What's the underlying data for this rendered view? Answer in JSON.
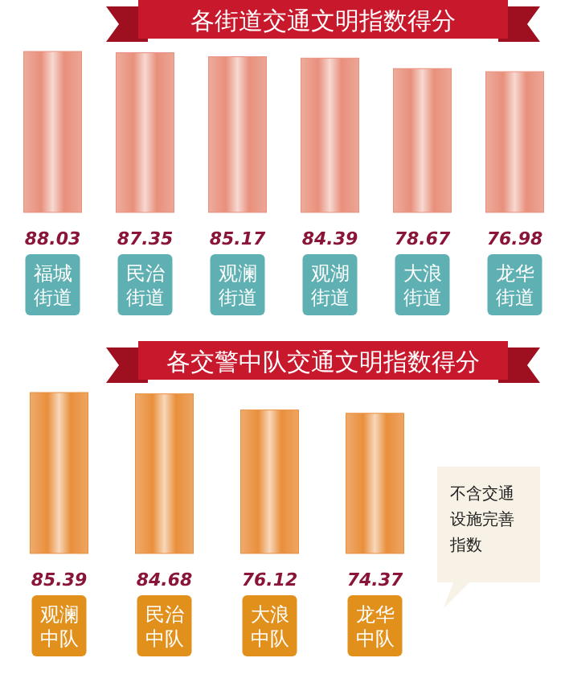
{
  "chart_data": [
    {
      "type": "bar",
      "title": "各街道交通文明指数得分",
      "categories": [
        "福城街道",
        "民治街道",
        "观澜街道",
        "观湖街道",
        "大浪街道",
        "龙华街道"
      ],
      "values": [
        88.03,
        87.35,
        85.17,
        84.39,
        78.67,
        76.98
      ],
      "color": "#e8907c",
      "data_labels": true
    },
    {
      "type": "bar",
      "title": "各交警中队交通文明指数得分",
      "categories": [
        "观澜中队",
        "民治中队",
        "大浪中队",
        "龙华中队"
      ],
      "values": [
        85.39,
        84.68,
        76.12,
        74.37
      ],
      "color": "#e98f3c",
      "data_labels": true,
      "annotations": [
        "不含交通设施完善指数"
      ]
    }
  ]
}
